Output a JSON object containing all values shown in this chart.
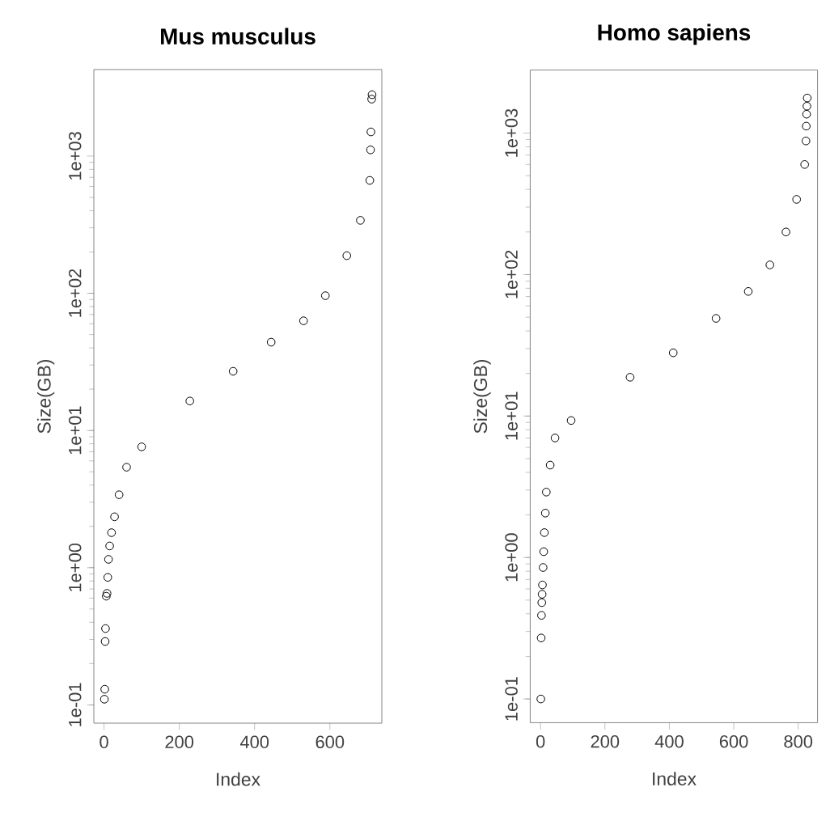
{
  "chart_data": [
    {
      "type": "scatter",
      "title": "Mus musculus",
      "xlabel": "Index",
      "ylabel": "Size(GB)",
      "color": "#000000",
      "marker": "circle",
      "log": "y",
      "x": [
        1,
        2,
        3,
        4,
        6,
        8,
        10,
        12,
        15,
        20,
        28,
        40,
        60,
        100,
        228,
        343,
        444,
        530,
        588,
        645,
        681,
        706,
        708,
        709,
        711,
        712
      ],
      "values": [
        0.11,
        0.13,
        0.29,
        0.36,
        0.62,
        0.65,
        0.85,
        1.15,
        1.44,
        1.8,
        2.35,
        3.4,
        5.4,
        7.6,
        16.4,
        27,
        44,
        63,
        96,
        188,
        340,
        665,
        1110,
        1500,
        2600,
        2800
      ],
      "xlim": [
        -27,
        738
      ],
      "ylim": [
        0.0736,
        4270
      ],
      "xticks": [
        0,
        200,
        400,
        600
      ],
      "yticks": [
        {
          "value": 0.1,
          "label": "1e-01"
        },
        {
          "value": 1,
          "label": "1e+00"
        },
        {
          "value": 10,
          "label": "1e+01"
        },
        {
          "value": 100,
          "label": "1e+02"
        },
        {
          "value": 1000,
          "label": "1e+03"
        }
      ]
    },
    {
      "type": "scatter",
      "title": "Homo sapiens",
      "xlabel": "Index",
      "ylabel": "Size(GB)",
      "color": "#000000",
      "marker": "circle",
      "log": "y",
      "x": [
        1,
        2,
        3,
        4,
        5,
        6,
        8,
        10,
        12,
        15,
        18,
        30,
        45,
        95,
        278,
        412,
        545,
        645,
        712,
        762,
        795,
        820,
        824,
        825,
        826,
        827,
        828
      ],
      "values": [
        0.1,
        0.27,
        0.39,
        0.48,
        0.55,
        0.64,
        0.85,
        1.1,
        1.5,
        2.06,
        2.9,
        4.5,
        7,
        9.3,
        18.8,
        28,
        49,
        76,
        117,
        200,
        340,
        600,
        880,
        1120,
        1360,
        1550,
        1770
      ],
      "xlim": [
        -32,
        860
      ],
      "ylim": [
        0.068,
        2790
      ],
      "xticks": [
        0,
        200,
        400,
        600,
        800
      ],
      "yticks": [
        {
          "value": 0.1,
          "label": "1e-01"
        },
        {
          "value": 1,
          "label": "1e+00"
        },
        {
          "value": 10,
          "label": "1e+01"
        },
        {
          "value": 100,
          "label": "1e+02"
        },
        {
          "value": 1000,
          "label": "1e+03"
        }
      ]
    }
  ]
}
